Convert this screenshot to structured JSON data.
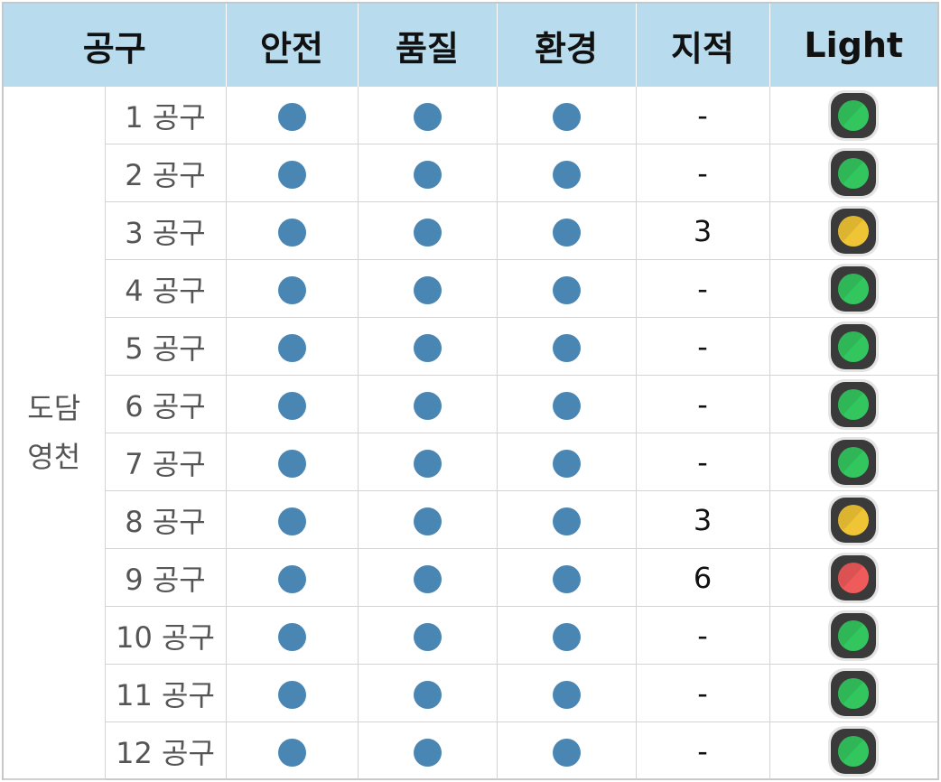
{
  "header": {
    "col_gongu": "공구",
    "col_safety": "안전",
    "col_quality": "품질",
    "col_environment": "환경",
    "col_remarks": "지적",
    "col_light": "Light"
  },
  "group": {
    "line1": "도담",
    "line2": "영천"
  },
  "colors": {
    "header_bg": "#b8dcee",
    "dot": "#4a86b4",
    "green": "#33c65e",
    "yellow": "#efc435",
    "red": "#ef5a5a",
    "light_frame": "#3a3a3a"
  },
  "rows": [
    {
      "name": "1 공구",
      "remarks": "-",
      "light": "green"
    },
    {
      "name": "2 공구",
      "remarks": "-",
      "light": "green"
    },
    {
      "name": "3 공구",
      "remarks": "3",
      "light": "yellow"
    },
    {
      "name": "4 공구",
      "remarks": "-",
      "light": "green"
    },
    {
      "name": "5 공구",
      "remarks": "-",
      "light": "green"
    },
    {
      "name": "6 공구",
      "remarks": "-",
      "light": "green"
    },
    {
      "name": "7 공구",
      "remarks": "-",
      "light": "green"
    },
    {
      "name": "8 공구",
      "remarks": "3",
      "light": "yellow"
    },
    {
      "name": "9 공구",
      "remarks": "6",
      "light": "red"
    },
    {
      "name": "10 공구",
      "remarks": "-",
      "light": "green"
    },
    {
      "name": "11 공구",
      "remarks": "-",
      "light": "green"
    },
    {
      "name": "12 공구",
      "remarks": "-",
      "light": "green"
    }
  ]
}
